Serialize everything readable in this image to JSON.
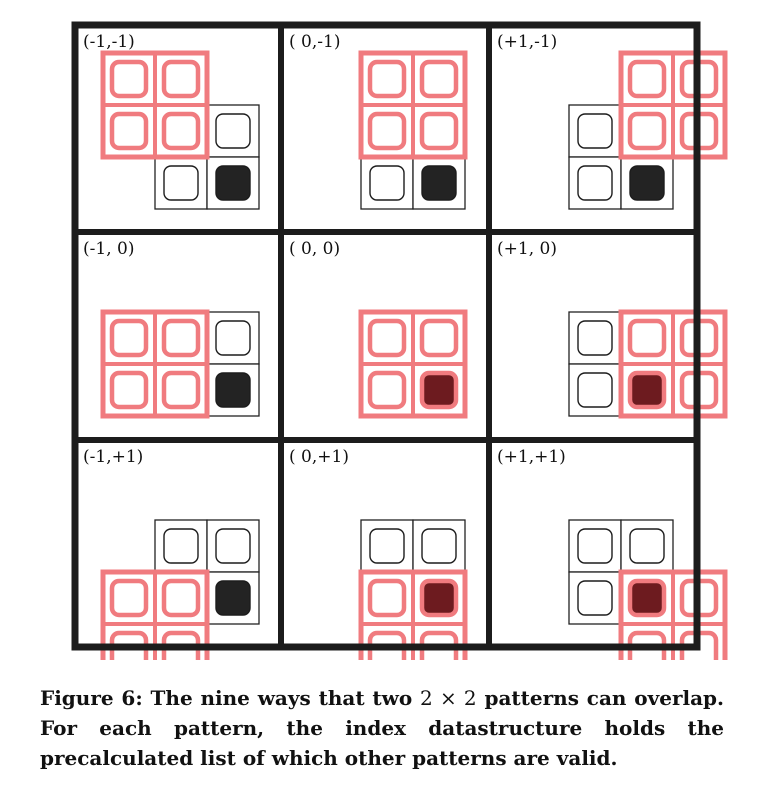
{
  "figure": {
    "panels": [
      {
        "label": "(-1,-1)",
        "dx": -1,
        "dy": -1
      },
      {
        "label": "( 0,-1)",
        "dx": 0,
        "dy": -1
      },
      {
        "label": "(+1,-1)",
        "dx": 1,
        "dy": -1
      },
      {
        "label": "(-1, 0)",
        "dx": -1,
        "dy": 0
      },
      {
        "label": "( 0, 0)",
        "dx": 0,
        "dy": 0
      },
      {
        "label": "(+1, 0)",
        "dx": 1,
        "dy": 0
      },
      {
        "label": "(-1,+1)",
        "dx": -1,
        "dy": 1
      },
      {
        "label": "( 0,+1)",
        "dx": 0,
        "dy": 1
      },
      {
        "label": "(+1,+1)",
        "dx": 1,
        "dy": 1
      }
    ],
    "colors": {
      "frame": "#1c1c1c",
      "pattern_overlay": "#f07b7f",
      "pattern_tile_border": "#222222",
      "filled_tile": "#232323",
      "overlap_dark": "#7a1a1e"
    }
  },
  "caption": {
    "prefix": "Figure 6: The nine ways that two ",
    "math": "2 × 2",
    "suffix": " patterns can overlap. For each pattern, the index datastructure holds the precalculated list of which other patterns are valid."
  }
}
